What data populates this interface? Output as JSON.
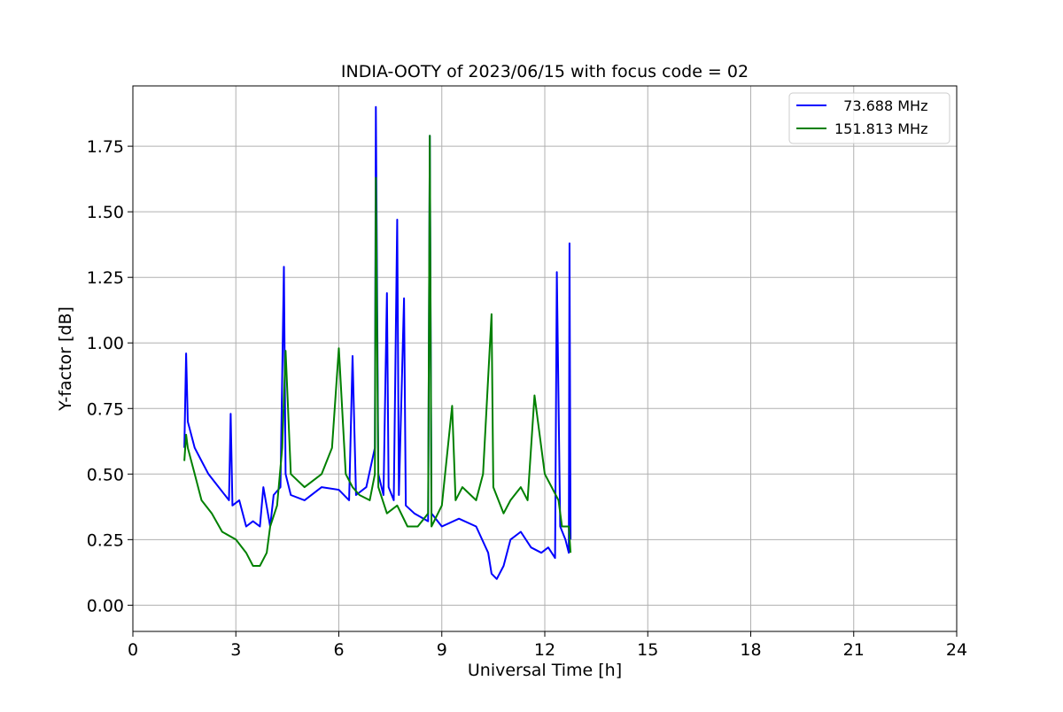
{
  "chart_data": {
    "type": "line",
    "title": "INDIA-OOTY of 2023/06/15 with focus code = 02",
    "xlabel": "Universal Time [h]",
    "ylabel": "Y-factor [dB]",
    "xlim": [
      0,
      24
    ],
    "ylim": [
      -0.1,
      1.98
    ],
    "xticks": [
      0,
      3,
      6,
      9,
      12,
      15,
      18,
      21,
      24
    ],
    "xtick_labels": [
      "0",
      "3",
      "6",
      "9",
      "12",
      "15",
      "18",
      "21",
      "24"
    ],
    "yticks": [
      0.0,
      0.25,
      0.5,
      0.75,
      1.0,
      1.25,
      1.5,
      1.75
    ],
    "ytick_labels": [
      "0.00",
      "0.25",
      "0.50",
      "0.75",
      "1.00",
      "1.25",
      "1.50",
      "1.75"
    ],
    "grid": true,
    "legend_position": "top-right",
    "series": [
      {
        "name": "  73.688 MHz",
        "color": "#0000ff",
        "x": [
          1.5,
          1.55,
          1.6,
          1.8,
          2.0,
          2.2,
          2.5,
          2.8,
          2.85,
          2.9,
          3.1,
          3.3,
          3.5,
          3.7,
          3.8,
          4.0,
          4.1,
          4.3,
          4.4,
          4.45,
          4.6,
          5.0,
          5.5,
          6.0,
          6.3,
          6.4,
          6.5,
          6.8,
          7.05,
          7.08,
          7.15,
          7.3,
          7.4,
          7.45,
          7.6,
          7.7,
          7.75,
          7.9,
          7.95,
          8.2,
          8.6,
          8.65,
          8.7,
          9.0,
          9.5,
          10.0,
          10.35,
          10.45,
          10.6,
          10.8,
          11.0,
          11.3,
          11.6,
          11.9,
          12.1,
          12.2,
          12.3,
          12.35,
          12.45,
          12.6,
          12.7,
          12.72,
          12.75
        ],
        "y": [
          0.6,
          0.96,
          0.7,
          0.6,
          0.55,
          0.5,
          0.45,
          0.4,
          0.73,
          0.38,
          0.4,
          0.3,
          0.32,
          0.3,
          0.45,
          0.3,
          0.42,
          0.45,
          1.29,
          0.5,
          0.42,
          0.4,
          0.45,
          0.44,
          0.4,
          0.95,
          0.42,
          0.45,
          0.6,
          1.9,
          0.5,
          0.42,
          1.19,
          0.45,
          0.4,
          1.47,
          0.42,
          1.17,
          0.38,
          0.35,
          0.32,
          1.79,
          0.35,
          0.3,
          0.33,
          0.3,
          0.2,
          0.12,
          0.1,
          0.15,
          0.25,
          0.28,
          0.22,
          0.2,
          0.22,
          0.2,
          0.18,
          1.27,
          0.3,
          0.25,
          0.2,
          1.38,
          0.25
        ]
      },
      {
        "name": "151.813 MHz",
        "color": "#008000",
        "x": [
          1.5,
          1.55,
          1.6,
          1.8,
          2.0,
          2.3,
          2.6,
          3.0,
          3.3,
          3.5,
          3.7,
          3.9,
          4.0,
          4.2,
          4.35,
          4.45,
          4.6,
          5.0,
          5.5,
          5.8,
          6.0,
          6.2,
          6.4,
          6.6,
          6.9,
          7.05,
          7.08,
          7.15,
          7.4,
          7.7,
          8.0,
          8.3,
          8.6,
          8.65,
          8.7,
          9.0,
          9.3,
          9.4,
          9.6,
          10.0,
          10.2,
          10.45,
          10.5,
          10.8,
          11.0,
          11.3,
          11.5,
          11.7,
          12.0,
          12.2,
          12.4,
          12.5,
          12.7,
          12.75
        ],
        "y": [
          0.55,
          0.65,
          0.6,
          0.5,
          0.4,
          0.35,
          0.28,
          0.25,
          0.2,
          0.15,
          0.15,
          0.2,
          0.3,
          0.38,
          0.6,
          0.97,
          0.5,
          0.45,
          0.5,
          0.6,
          0.98,
          0.5,
          0.45,
          0.42,
          0.4,
          0.5,
          1.63,
          0.45,
          0.35,
          0.38,
          0.3,
          0.3,
          0.35,
          1.79,
          0.3,
          0.38,
          0.76,
          0.4,
          0.45,
          0.4,
          0.5,
          1.11,
          0.45,
          0.35,
          0.4,
          0.45,
          0.4,
          0.8,
          0.5,
          0.45,
          0.4,
          0.3,
          0.3,
          0.2
        ]
      }
    ]
  }
}
